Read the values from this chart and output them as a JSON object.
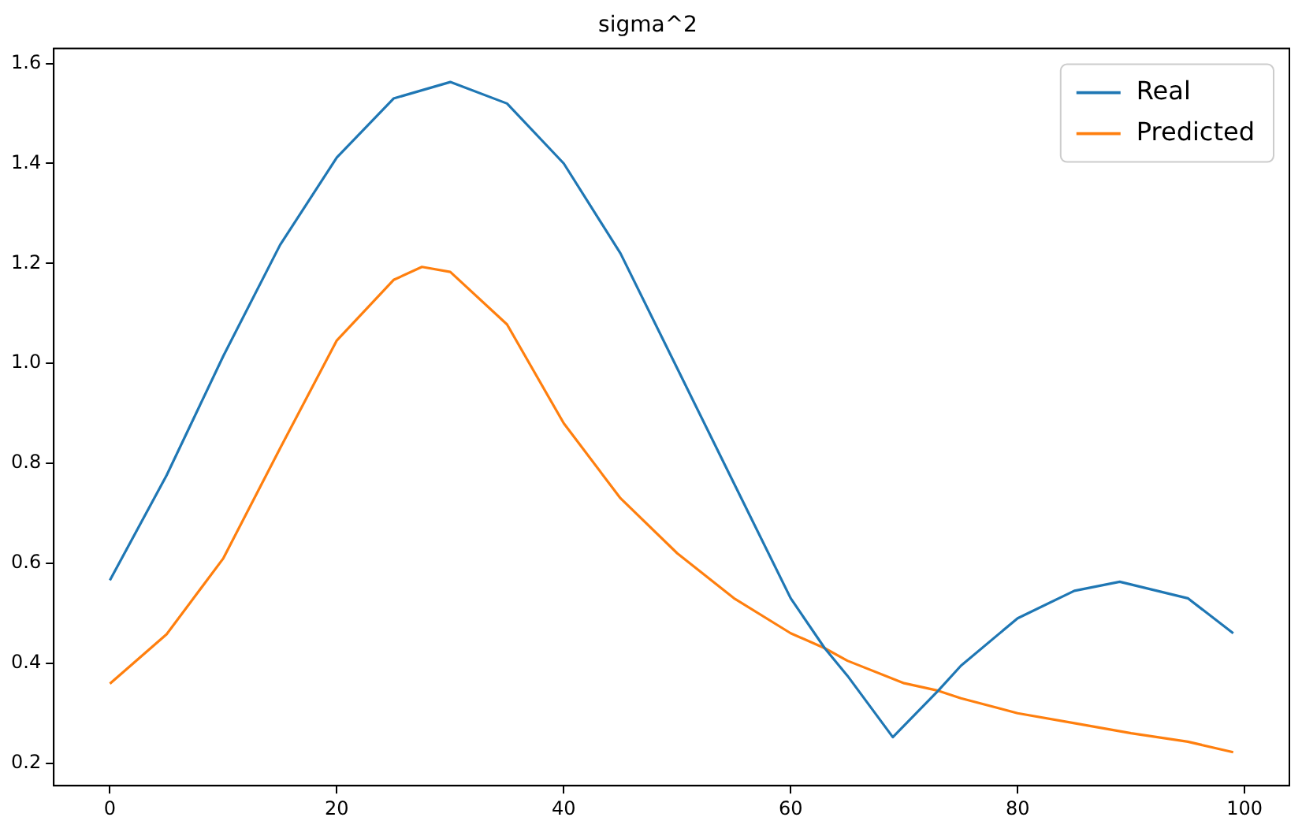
{
  "chart_data": {
    "type": "line",
    "title": "sigma^2",
    "xlim": [
      -4.95,
      103.95
    ],
    "xticks": [
      0,
      20,
      40,
      60,
      80,
      100
    ],
    "ylim": [
      0.155,
      1.63
    ],
    "yticks": [
      0.2,
      0.4,
      0.6,
      0.8,
      {
        "value": 1,
        "label": "1.0"
      },
      1.2,
      1.4,
      1.6
    ],
    "grid": false,
    "legend": "top right",
    "marker": "none",
    "line_style": "solid",
    "series": [
      {
        "name": "Real",
        "color": "#1f77b4",
        "x": [
          0,
          5,
          10,
          15,
          20,
          25,
          30,
          35,
          40,
          45,
          50,
          55,
          60,
          63,
          65,
          69,
          73,
          75,
          80,
          85,
          89,
          95,
          99
        ],
        "values": [
          0.566,
          0.776,
          1.015,
          1.237,
          1.412,
          1.53,
          1.563,
          1.52,
          1.4,
          1.22,
          0.99,
          0.76,
          0.53,
          0.43,
          0.375,
          0.252,
          0.345,
          0.395,
          0.49,
          0.545,
          0.563,
          0.53,
          0.46
        ]
      },
      {
        "name": "Predicted",
        "color": "#ff7f0e",
        "x": [
          0,
          5,
          10,
          15,
          20,
          25,
          27.5,
          30,
          35,
          40,
          45,
          50,
          55,
          60,
          63,
          65,
          70,
          73,
          75,
          80,
          85,
          90,
          95,
          99
        ],
        "values": [
          0.359,
          0.458,
          0.61,
          0.83,
          1.046,
          1.167,
          1.193,
          1.183,
          1.078,
          0.88,
          0.73,
          0.62,
          0.53,
          0.46,
          0.43,
          0.405,
          0.36,
          0.345,
          0.33,
          0.3,
          0.28,
          0.26,
          0.243,
          0.222
        ]
      }
    ]
  }
}
